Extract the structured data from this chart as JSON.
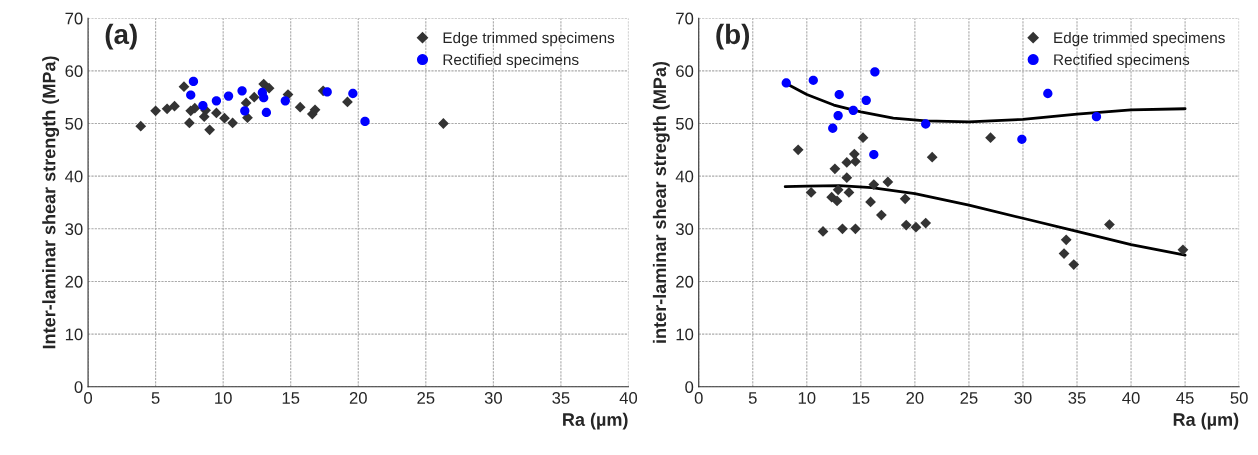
{
  "chart_data": [
    {
      "type": "scatter",
      "title": "(a)",
      "xlabel": "Ra (µm)",
      "ylabel": "Inter-laminar shear strength (MPa)",
      "xlim": [
        0,
        40
      ],
      "ylim": [
        0,
        70
      ],
      "xticks": [
        0,
        5,
        10,
        15,
        20,
        25,
        30,
        35,
        40
      ],
      "yticks": [
        0,
        10,
        20,
        30,
        40,
        50,
        60,
        70
      ],
      "grid": true,
      "legend": "top right",
      "series": [
        {
          "name": "Edge trimmed specimens",
          "color": "#333333",
          "marker": "diamond",
          "x": [
            3.9,
            5.0,
            5.85,
            6.4,
            7.1,
            7.5,
            7.6,
            7.9,
            8.7,
            8.6,
            9.0,
            9.5,
            10.1,
            10.7,
            11.7,
            11.8,
            12.3,
            13.0,
            13.4,
            14.8,
            15.7,
            16.6,
            16.8,
            17.4,
            19.2,
            26.3
          ],
          "values": [
            49.5,
            52.4,
            52.8,
            53.3,
            57.0,
            50.1,
            52.4,
            52.9,
            52.5,
            51.3,
            48.8,
            52.0,
            51.0,
            50.1,
            53.9,
            51.1,
            55.0,
            57.5,
            56.7,
            55.5,
            53.1,
            51.8,
            52.6,
            56.2,
            54.1,
            50.0
          ]
        },
        {
          "name": "Rectified specimens",
          "color": "#0000ff",
          "marker": "circle",
          "x": [
            7.8,
            7.6,
            8.5,
            9.5,
            10.4,
            11.4,
            11.6,
            12.9,
            13.0,
            13.2,
            14.6,
            17.7,
            19.6,
            20.5
          ],
          "values": [
            58.0,
            55.4,
            53.4,
            54.3,
            55.2,
            56.2,
            52.4,
            55.9,
            54.9,
            52.1,
            54.3,
            56.0,
            55.7,
            50.4
          ]
        }
      ]
    },
    {
      "type": "scatter",
      "title": "(b)",
      "xlabel": "Ra (µm)",
      "ylabel": "inter-laminar shear stregth (MPa)",
      "xlim": [
        0,
        50
      ],
      "ylim": [
        0,
        70
      ],
      "xticks": [
        0,
        5,
        10,
        15,
        20,
        25,
        30,
        35,
        40,
        45,
        50
      ],
      "yticks": [
        0,
        10,
        20,
        30,
        40,
        50,
        60,
        70
      ],
      "grid": true,
      "legend": "top right",
      "series": [
        {
          "name": "Edge trimmed specimens",
          "color": "#333333",
          "marker": "diamond",
          "x": [
            9.2,
            15.2,
            14.4,
            13.7,
            14.5,
            12.6,
            21.6,
            13.7,
            10.4,
            12.9,
            13.9,
            12.3,
            12.8,
            16.2,
            17.5,
            15.9,
            19.1,
            16.9,
            11.5,
            13.3,
            14.5,
            19.2,
            20.1,
            21.0,
            27.0,
            38.0,
            34.0,
            33.8,
            34.7,
            44.8
          ],
          "values": [
            45.0,
            47.3,
            44.2,
            42.6,
            42.8,
            41.4,
            43.6,
            39.7,
            36.9,
            37.4,
            36.9,
            36.0,
            35.3,
            38.4,
            38.9,
            35.1,
            35.7,
            32.6,
            29.5,
            30.0,
            30.0,
            30.7,
            30.3,
            31.1,
            47.3,
            30.8,
            27.9,
            25.3,
            23.2,
            26.0
          ]
        },
        {
          "name": "Rectified specimens",
          "color": "#0000ff",
          "marker": "circle",
          "x": [
            8.1,
            10.6,
            13.0,
            15.5,
            14.3,
            12.9,
            12.4,
            16.3,
            21.0,
            16.2,
            32.3,
            29.9,
            36.8
          ],
          "values": [
            57.7,
            58.2,
            55.5,
            54.4,
            52.5,
            51.5,
            49.1,
            59.8,
            49.9,
            44.1,
            55.7,
            47.0,
            51.3
          ]
        },
        {
          "type": "line",
          "color": "#000000",
          "marker": "none",
          "x": [
            8,
            10,
            12.5,
            15,
            18,
            21,
            25,
            30,
            35,
            40,
            45
          ],
          "values": [
            57.7,
            55.5,
            53.5,
            52.2,
            51.0,
            50.5,
            50.3,
            50.8,
            51.8,
            52.6,
            52.8
          ]
        },
        {
          "type": "line",
          "color": "#000000",
          "marker": "none",
          "x": [
            8,
            10,
            13,
            16,
            20,
            25,
            30,
            35,
            40,
            45
          ],
          "values": [
            38.0,
            38.1,
            38.2,
            37.8,
            36.7,
            34.5,
            32.0,
            29.5,
            27.0,
            25.0
          ]
        }
      ]
    }
  ]
}
